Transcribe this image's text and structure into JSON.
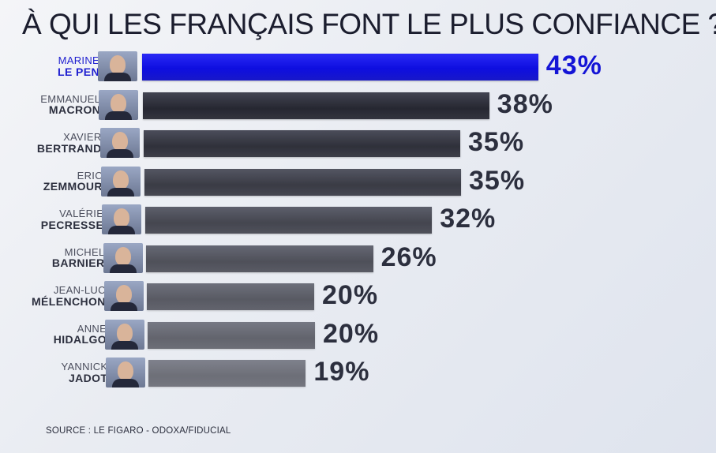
{
  "title": "À QUI LES FRANÇAIS FONT LE PLUS CONFIANCE ?",
  "source": "SOURCE : LE FIGARO - ODOXA/FIDUCIAL",
  "colors": {
    "highlight": "#1414d6",
    "bar": "#1c1d27",
    "text": "#2c2f3e"
  },
  "chart_data": {
    "type": "bar",
    "orientation": "horizontal",
    "title": "À QUI LES FRANÇAIS FONT LE PLUS CONFIANCE ?",
    "categories": [
      {
        "first": "MARINE",
        "last": "LE PEN"
      },
      {
        "first": "EMMANUEL",
        "last": "MACRON"
      },
      {
        "first": "XAVIER",
        "last": "BERTRAND"
      },
      {
        "first": "ERIC",
        "last": "ZEMMOUR"
      },
      {
        "first": "VALÉRIE",
        "last": "PECRESSE"
      },
      {
        "first": "MICHEL",
        "last": "BARNIER"
      },
      {
        "first": "JEAN-LUC",
        "last": "MÉLENCHON"
      },
      {
        "first": "ANNE",
        "last": "HIDALGO"
      },
      {
        "first": "YANNICK",
        "last": "JADOT"
      }
    ],
    "values": [
      43,
      38,
      35,
      35,
      32,
      26,
      20,
      20,
      19
    ],
    "value_labels": [
      "43%",
      "38%",
      "35%",
      "35%",
      "32%",
      "26%",
      "20%",
      "20%",
      "19%"
    ],
    "highlighted_index": 0,
    "unit": "%",
    "grid": false,
    "legend": "none"
  }
}
